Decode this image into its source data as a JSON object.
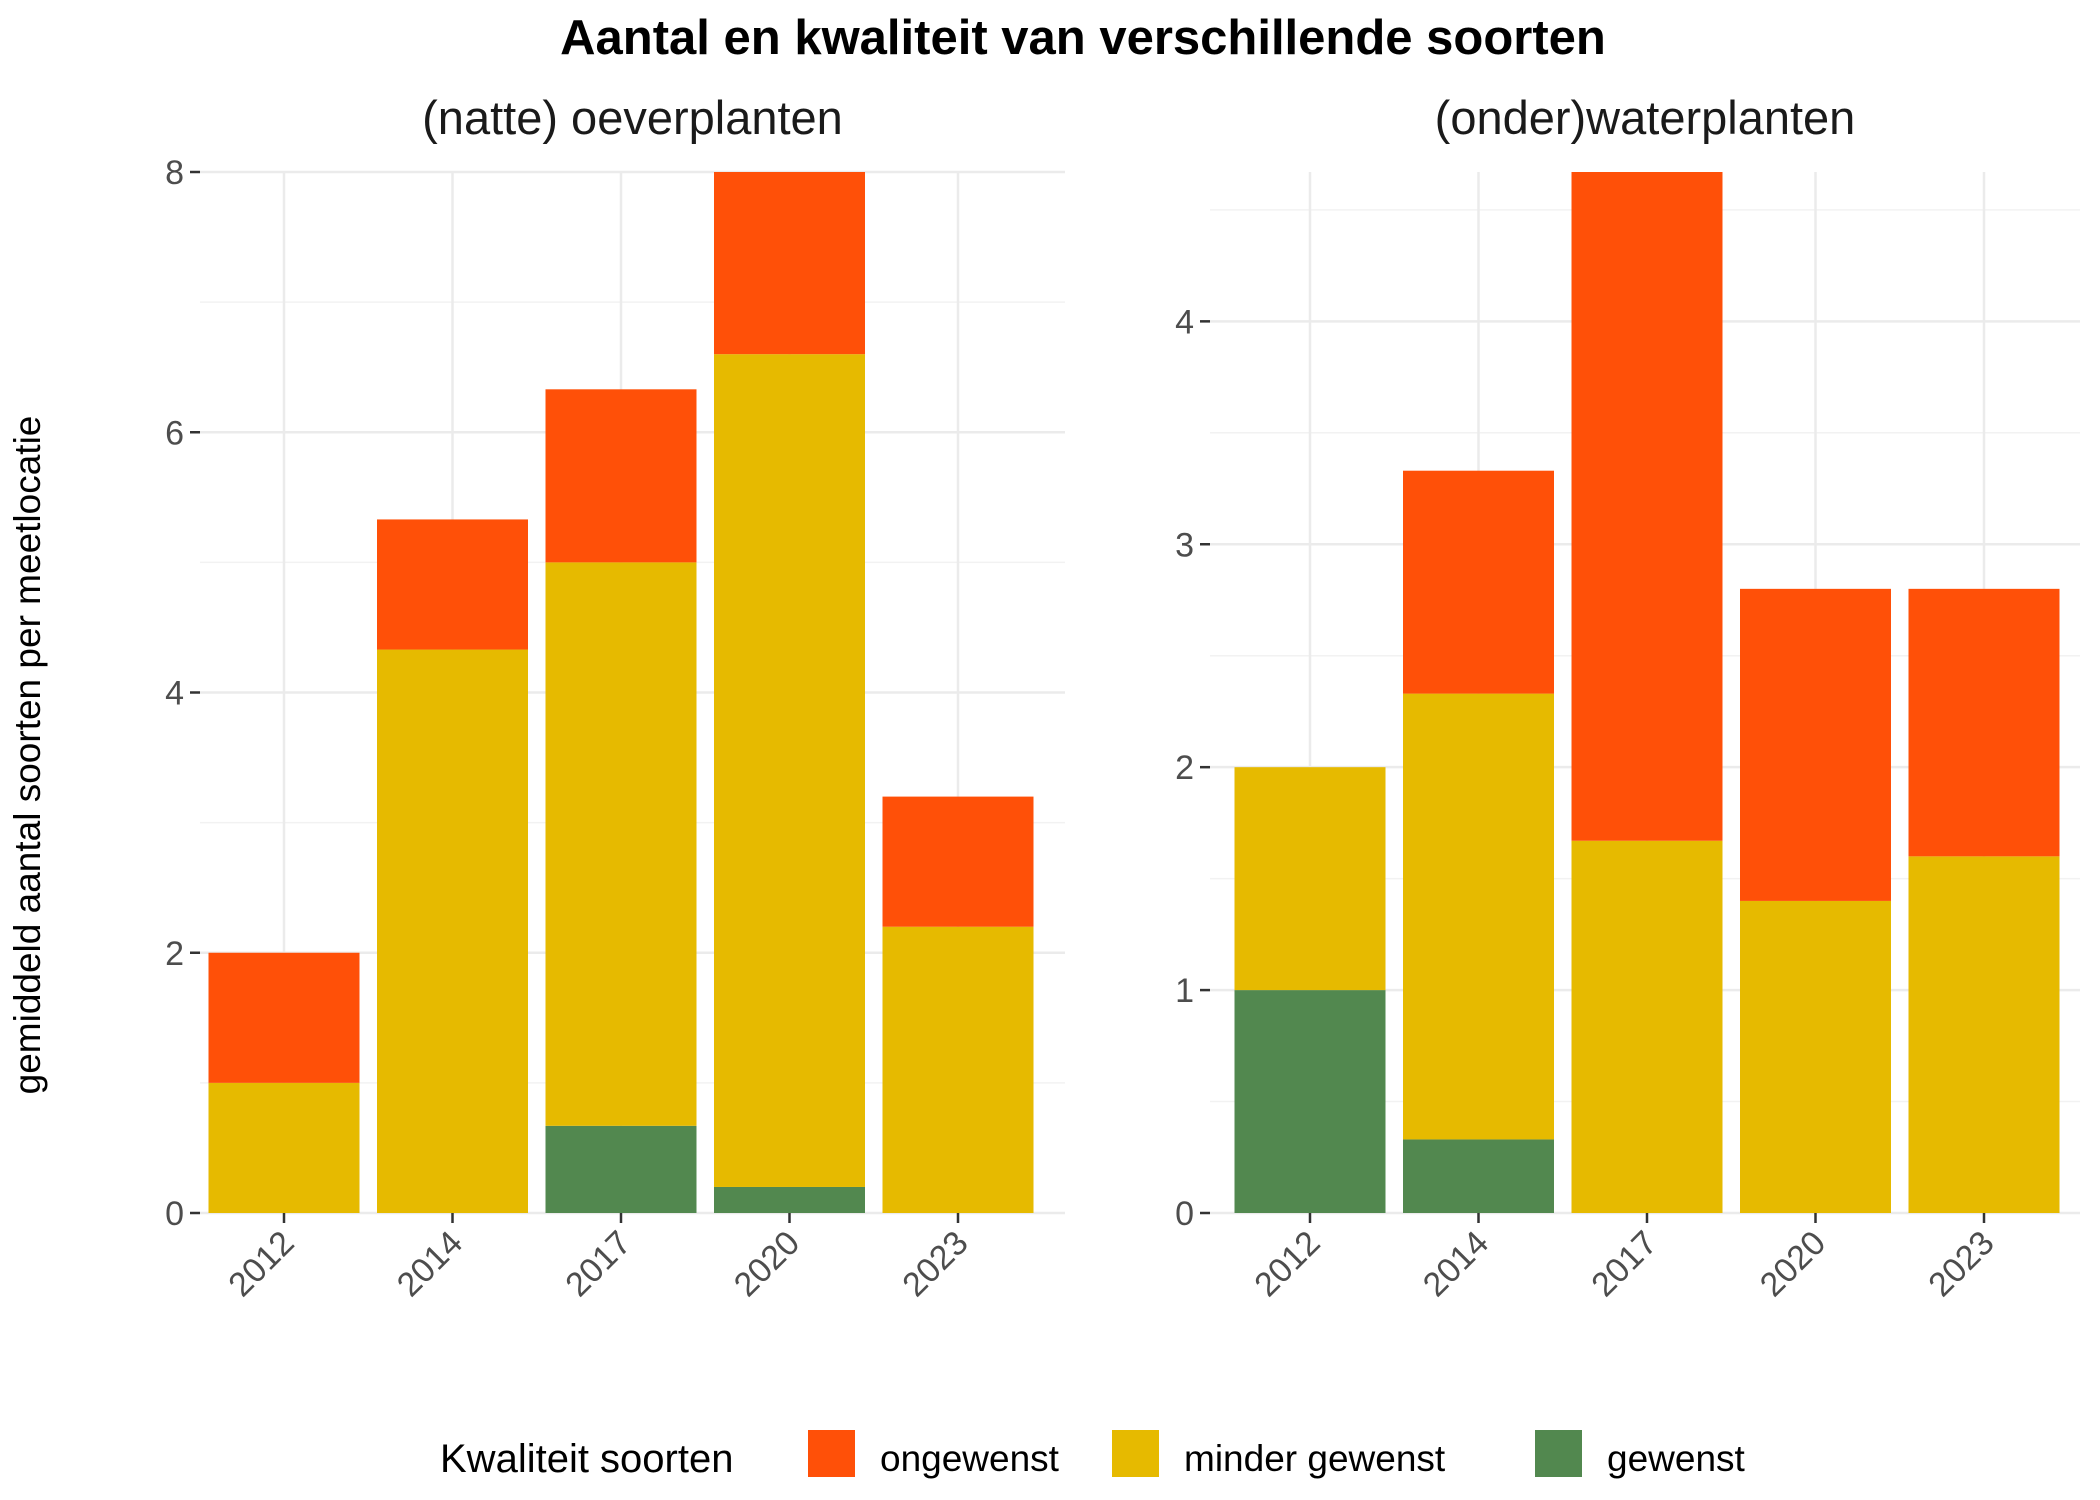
{
  "title": "Aantal en kwaliteit van verschillende soorten",
  "ylabel": "gemiddeld aantal soorten per meetlocatie",
  "legend": {
    "title": "Kwaliteit soorten",
    "items": [
      {
        "label": "ongewenst",
        "color": "#FF5008"
      },
      {
        "label": "minder gewenst",
        "color": "#E6BA00"
      },
      {
        "label": "gewenst",
        "color": "#52884F"
      }
    ]
  },
  "chart_data": [
    {
      "type": "bar",
      "stacked": true,
      "panel": "(natte) oeverplanten",
      "categories": [
        "2012",
        "2014",
        "2017",
        "2020",
        "2023"
      ],
      "ylim": [
        0,
        8
      ],
      "yticks": [
        0,
        2,
        4,
        6,
        8
      ],
      "series": [
        {
          "name": "gewenst",
          "color": "#52884F",
          "values": [
            0,
            0,
            0.67,
            0.2,
            0
          ]
        },
        {
          "name": "minder gewenst",
          "color": "#E6BA00",
          "values": [
            1.0,
            4.33,
            4.33,
            6.4,
            2.2
          ]
        },
        {
          "name": "ongewenst",
          "color": "#FF5008",
          "values": [
            1.0,
            1.0,
            1.33,
            1.4,
            1.0
          ]
        }
      ]
    },
    {
      "type": "bar",
      "stacked": true,
      "panel": "(onder)waterplanten",
      "categories": [
        "2012",
        "2014",
        "2017",
        "2020",
        "2023"
      ],
      "ylim": [
        0,
        4.67
      ],
      "yticks": [
        0,
        1,
        2,
        3,
        4
      ],
      "series": [
        {
          "name": "gewenst",
          "color": "#52884F",
          "values": [
            1.0,
            0.33,
            0,
            0,
            0
          ]
        },
        {
          "name": "minder gewenst",
          "color": "#E6BA00",
          "values": [
            1.0,
            2.0,
            1.67,
            1.4,
            1.6
          ]
        },
        {
          "name": "ongewenst",
          "color": "#FF5008",
          "values": [
            0,
            1.0,
            3.0,
            1.4,
            1.2
          ]
        }
      ]
    }
  ]
}
